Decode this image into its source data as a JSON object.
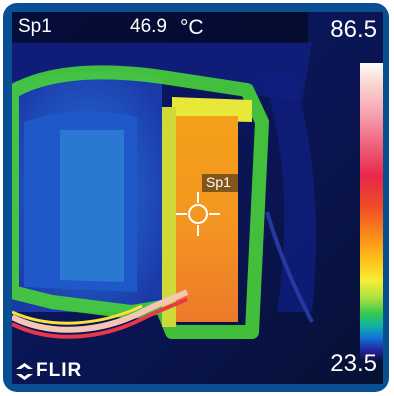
{
  "spot_meter": {
    "label": "Sp1",
    "temperature": "46.9",
    "unit": "°C"
  },
  "spot_marker_label": "Sp1",
  "temperature_scale": {
    "max": "86.5",
    "min": "23.5"
  },
  "brand": {
    "logo_text": "FLIR"
  },
  "colors": {
    "frame": "#0b4f93",
    "hot": "#f4a21c",
    "cold": "#0d1650"
  }
}
